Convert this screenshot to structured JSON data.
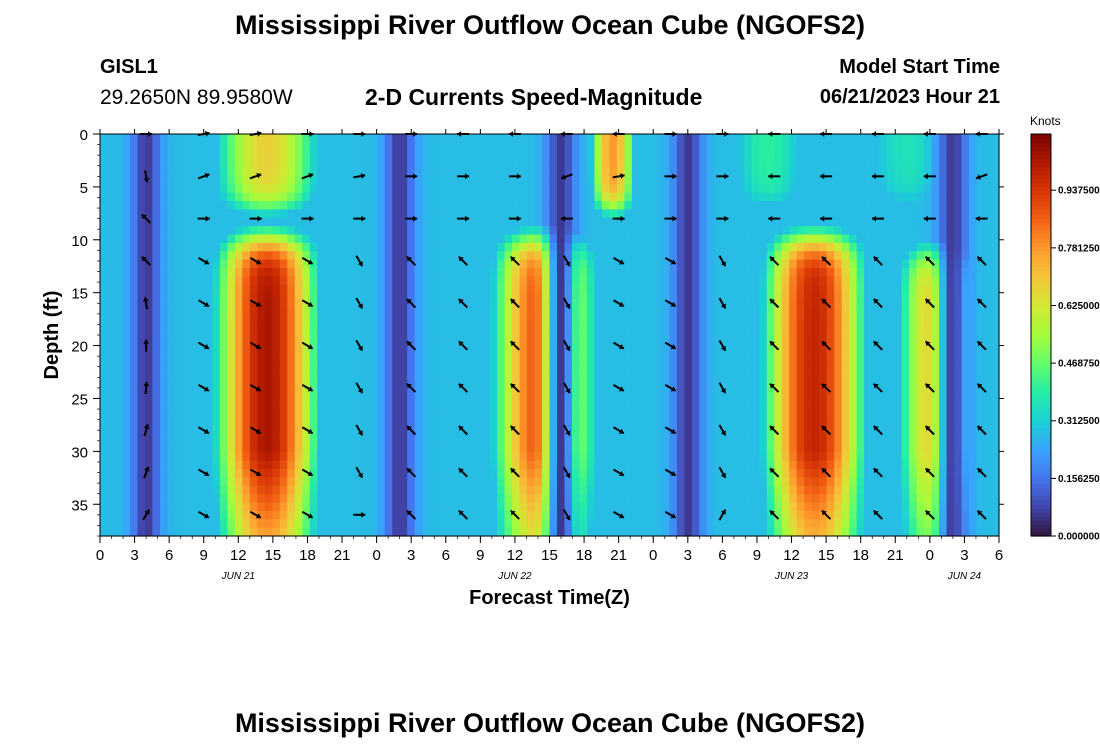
{
  "header": {
    "title": "Mississippi River Outflow Ocean Cube (NGOFS2)",
    "station_id": "GISL1",
    "station_coords": "29.2650N  89.9580W",
    "subtitle": "2-D Currents Speed-Magnitude",
    "model_start_label": "Model Start Time",
    "model_start_value": "06/21/2023 Hour 21"
  },
  "footer": {
    "title": "Mississippi River Outflow Ocean Cube (NGOFS2)"
  },
  "chart_data": {
    "type": "heatmap",
    "title": "2-D Currents Speed-Magnitude",
    "xlabel": "Forecast Time(Z)",
    "ylabel": "Depth (ft)",
    "x_range_hours": [
      0,
      78
    ],
    "y_range_ft": [
      0,
      38
    ],
    "x_tick_labels": [
      "0",
      "3",
      "6",
      "9",
      "12",
      "15",
      "18",
      "21",
      "0",
      "3",
      "6",
      "9",
      "12",
      "15",
      "18",
      "21",
      "0",
      "3",
      "6",
      "9",
      "12",
      "15",
      "18",
      "21",
      "0",
      "3",
      "6"
    ],
    "y_tick_labels": [
      "0",
      "5",
      "10",
      "15",
      "20",
      "25",
      "30",
      "35"
    ],
    "y_tick_values": [
      0,
      5,
      10,
      15,
      20,
      25,
      30,
      35
    ],
    "date_labels": [
      {
        "label": "JUN 21",
        "hour": 12
      },
      {
        "label": "JUN 22",
        "hour": 36
      },
      {
        "label": "JUN 23",
        "hour": 60
      },
      {
        "label": "JUN 24",
        "hour": 75
      }
    ],
    "colorbar": {
      "unit": "Knots",
      "min": 0.0,
      "max": 1.09,
      "tick_labels": [
        "0.000000",
        "0.156250",
        "0.312500",
        "0.468750",
        "0.625000",
        "0.781250",
        "0.937500"
      ],
      "tick_values": [
        0.0,
        0.15625,
        0.3125,
        0.46875,
        0.625,
        0.78125,
        0.9375
      ],
      "colormap": [
        "#30123b",
        "#4145ab",
        "#4675ed",
        "#39a2fc",
        "#1bcfd4",
        "#24eca6",
        "#61fc6c",
        "#a4fc3b",
        "#d1e834",
        "#f3c63a",
        "#fe9b2d",
        "#f36315",
        "#d93806",
        "#b11901",
        "#7a0403"
      ]
    },
    "speed_model": {
      "description": "Depth-time speed pattern (knots): deep layer 10-38 ft and surface layer 0-8 ft",
      "deep_layer_peaks": [
        {
          "center_hour": 14.5,
          "halfwidth_hours": 6.5,
          "peak": 1.02,
          "top_ft": 9.5
        },
        {
          "center_hour": 38.5,
          "halfwidth_hours": 6.5,
          "peak": 0.92,
          "top_ft": 9.5
        },
        {
          "center_hour": 62.0,
          "halfwidth_hours": 6.5,
          "peak": 0.98,
          "top_ft": 9.5
        },
        {
          "center_hour": 72.5,
          "halfwidth_hours": 5.0,
          "peak": 0.72,
          "top_ft": 10.5
        }
      ],
      "surface_layer_peaks": [
        {
          "center_hour": 14.5,
          "halfwidth_hours": 7.0,
          "peak": 0.68
        },
        {
          "center_hour": 44.5,
          "halfwidth_hours": 3.0,
          "peak": 0.78
        },
        {
          "center_hour": 58.0,
          "halfwidth_hours": 6.0,
          "peak": 0.4
        },
        {
          "center_hour": 70.0,
          "halfwidth_hours": 7.0,
          "peak": 0.36
        }
      ],
      "minimum_hours": [
        4.0,
        26.0,
        40.0,
        51.0,
        74.0
      ]
    },
    "vectors": {
      "description": "Current direction arrows (degrees, 0 = east, counter-clockwise) sampled on grid",
      "depth_rows_ft": [
        0,
        4,
        8,
        12,
        16,
        20,
        24,
        28,
        32,
        36
      ],
      "hour_columns": [
        4.0,
        9.0,
        13.5,
        18.0,
        22.5,
        27.0,
        31.5,
        36.0,
        40.5,
        45.0,
        49.5,
        54.0,
        58.5,
        63.0,
        67.5,
        72.0,
        76.5
      ],
      "directions_deg": [
        [
          0,
          10,
          10,
          0,
          0,
          0,
          180,
          180,
          180,
          180,
          0,
          0,
          180,
          180,
          180,
          180,
          180
        ],
        [
          -80,
          20,
          20,
          20,
          10,
          0,
          0,
          0,
          200,
          10,
          0,
          0,
          180,
          180,
          180,
          180,
          200
        ],
        [
          135,
          0,
          0,
          0,
          0,
          0,
          0,
          0,
          180,
          0,
          0,
          0,
          180,
          180,
          180,
          180,
          180
        ],
        [
          135,
          -30,
          -30,
          -30,
          -60,
          135,
          135,
          135,
          -60,
          -30,
          -30,
          -60,
          135,
          135,
          135,
          135,
          135
        ],
        [
          100,
          -30,
          -30,
          -30,
          -60,
          135,
          135,
          135,
          -60,
          -30,
          -30,
          -60,
          135,
          135,
          135,
          135,
          135
        ],
        [
          90,
          -30,
          -30,
          -30,
          -60,
          135,
          135,
          135,
          -60,
          -30,
          -30,
          -60,
          135,
          135,
          135,
          135,
          135
        ],
        [
          85,
          -30,
          -30,
          -30,
          -60,
          135,
          135,
          135,
          -60,
          -30,
          -30,
          -60,
          135,
          135,
          135,
          135,
          135
        ],
        [
          75,
          -30,
          -30,
          -30,
          -60,
          135,
          135,
          135,
          -60,
          -30,
          -30,
          -60,
          135,
          135,
          135,
          135,
          135
        ],
        [
          70,
          -30,
          -30,
          -30,
          -60,
          135,
          135,
          135,
          -60,
          -30,
          -30,
          -60,
          135,
          135,
          135,
          135,
          135
        ],
        [
          60,
          -30,
          -30,
          -30,
          0,
          135,
          135,
          135,
          -60,
          -30,
          -30,
          60,
          135,
          135,
          135,
          135,
          135
        ]
      ]
    }
  }
}
